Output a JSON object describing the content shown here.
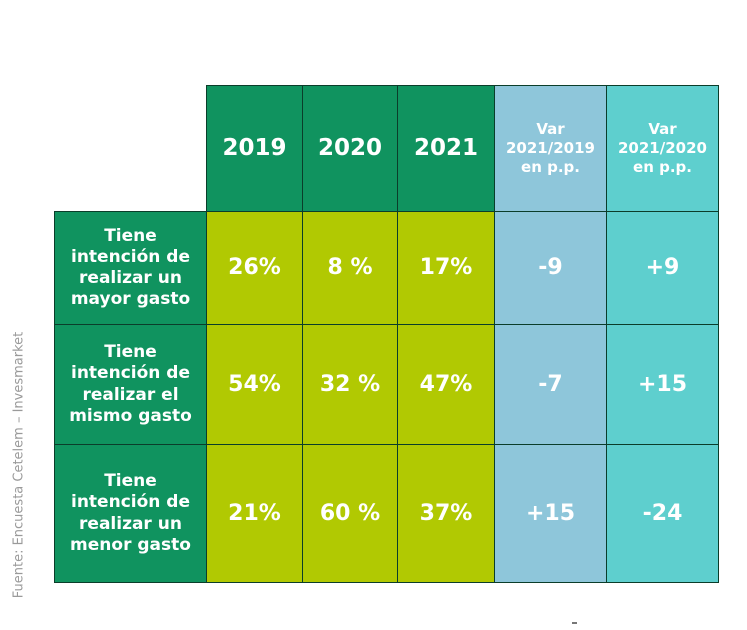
{
  "source": "Fuente: Encuesta Cetelem – Invesmarket",
  "chart_data": {
    "type": "table",
    "columns": [
      "2019",
      "2020",
      "2021",
      "Var 2021/2019 en p.p.",
      "Var 2021/2020 en p.p."
    ],
    "rows": [
      {
        "label": "Tiene intención de realizar un mayor gasto",
        "cells": [
          "26%",
          "8 %",
          "17%",
          "-9",
          "+9"
        ]
      },
      {
        "label": "Tiene intención de realizar el mismo gasto",
        "cells": [
          "54%",
          "32 %",
          "47%",
          "-7",
          "+15"
        ]
      },
      {
        "label": "Tiene intención de realizar un menor gasto",
        "cells": [
          "21%",
          "60 %",
          "37%",
          "+15",
          "-24"
        ]
      }
    ],
    "colors": {
      "header_green": "#10935f",
      "value_lime": "#b1c902",
      "var_blue": "#8ec6da",
      "var_teal": "#5ecfce"
    }
  }
}
